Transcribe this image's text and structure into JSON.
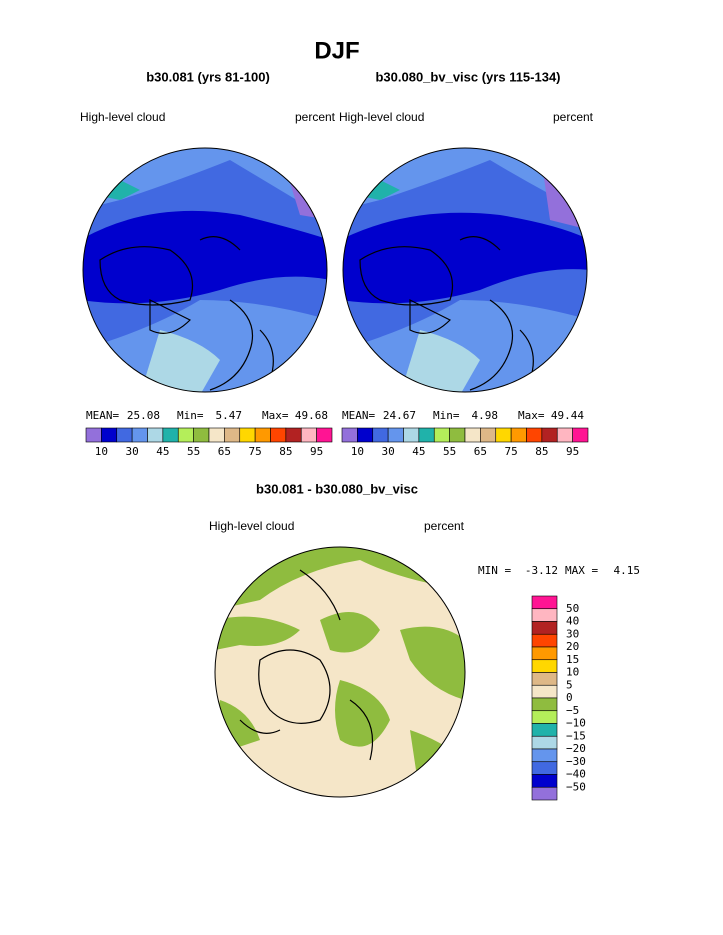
{
  "title": "DJF",
  "panels": [
    {
      "title": "b30.081 (yrs 81-100)",
      "left_label": "High-level cloud",
      "right_label": "percent",
      "stats": {
        "mean_label": "MEAN=",
        "mean": 25.08,
        "min_label": "Min=",
        "min": 5.47,
        "max_label": "Max=",
        "max": 49.68
      }
    },
    {
      "title": "b30.080_bv_visc (yrs 115-134)",
      "left_label": "High-level cloud",
      "right_label": "percent",
      "stats": {
        "mean_label": "MEAN=",
        "mean": 24.67,
        "min_label": "Min=",
        "min": 4.98,
        "max_label": "Max=",
        "max": 49.44
      }
    }
  ],
  "colorbar": {
    "colors": [
      "#9370db",
      "#0000cd",
      "#4169e1",
      "#6495ed",
      "#add8e6",
      "#20b2aa",
      "#b4ee5a",
      "#8fbc3f",
      "#f5e6c8",
      "#deb887",
      "#ffd700",
      "#ff9900",
      "#ff4500",
      "#b22222",
      "#ffb6c1",
      "#ff1493"
    ],
    "labels": [
      "10",
      "30",
      "45",
      "55",
      "65",
      "75",
      "85",
      "95"
    ]
  },
  "diff": {
    "title": "b30.081 - b30.080_bv_visc",
    "left_label": "High-level cloud",
    "right_label": "percent",
    "stats": {
      "min_label": "MIN =",
      "min": -3.12,
      "max_label": "MAX =",
      "max": 4.15
    },
    "colorbar": {
      "colors": [
        "#ff1493",
        "#ffb6c1",
        "#b22222",
        "#ff4500",
        "#ff9900",
        "#ffd700",
        "#deb887",
        "#f5e6c8",
        "#8fbc3f",
        "#b4ee5a",
        "#20b2aa",
        "#add8e6",
        "#6495ed",
        "#4169e1",
        "#0000cd",
        "#9370db"
      ],
      "labels": [
        "50",
        "40",
        "30",
        "20",
        "15",
        "10",
        "5",
        "0",
        "−5",
        "−10",
        "−15",
        "−20",
        "−30",
        "−40",
        "−50"
      ]
    }
  }
}
